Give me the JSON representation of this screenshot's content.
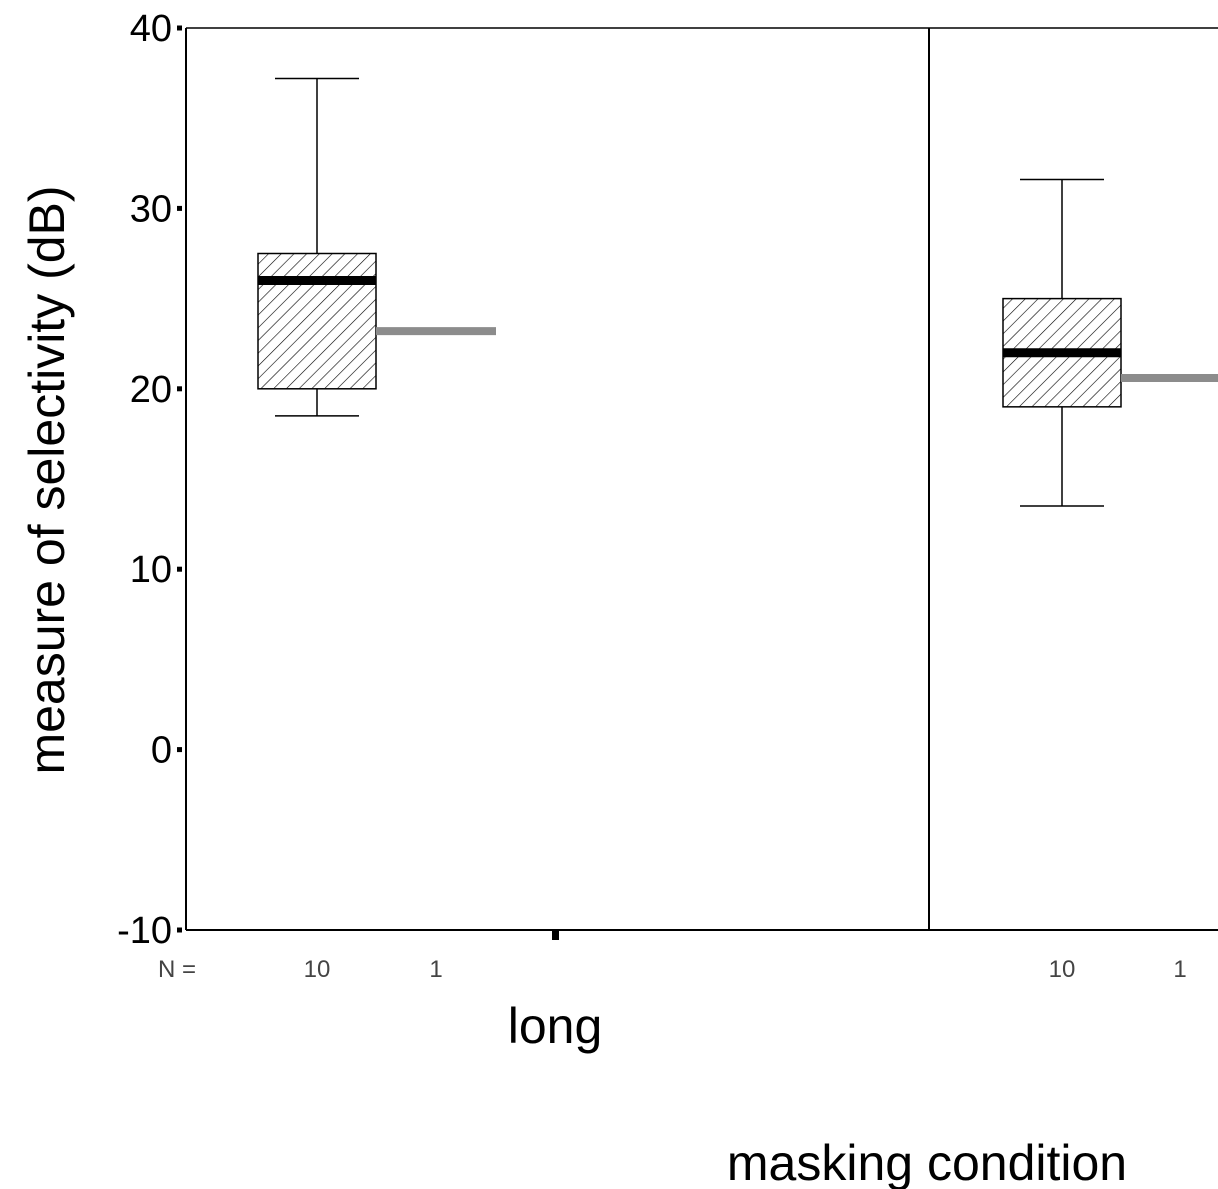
{
  "chart_data": {
    "type": "box",
    "ylabel": "measure of selectivity (dB)",
    "xlabel": "masking condition",
    "ylim": [
      -10,
      40
    ],
    "yticks": [
      -10,
      0,
      10,
      20,
      30,
      40
    ],
    "n_label": "N =",
    "groups": [
      {
        "label": "long",
        "box": {
          "n": "10",
          "whisker_low": 18.5,
          "q1": 20,
          "median": 26,
          "q3": 27.5,
          "whisker_high": 37.2
        },
        "single": {
          "n": "1",
          "value": 23.2
        }
      },
      {
        "label": "",
        "box": {
          "n": "10",
          "whisker_low": 13.5,
          "q1": 19,
          "median": 22,
          "q3": 25,
          "whisker_high": 31.6
        },
        "single": {
          "n": "1",
          "value": 20.6
        }
      }
    ]
  },
  "colors": {
    "box_fill_hatch": "#000000",
    "median": "#000000",
    "single_line": "#8c8c8c",
    "axis": "#000000"
  }
}
